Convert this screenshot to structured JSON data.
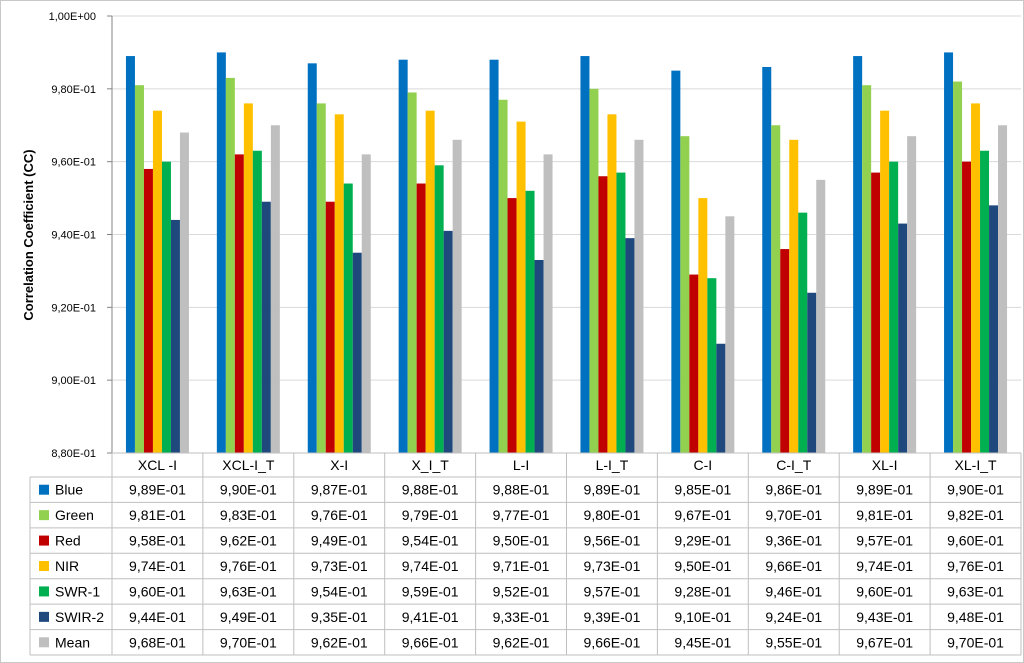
{
  "chart_data": {
    "type": "bar",
    "ylabel": "Correlation Coefficient (CC)",
    "ylim": [
      0.88,
      1.0
    ],
    "ytick_values": [
      0.88,
      0.9,
      0.92,
      0.94,
      0.96,
      0.98,
      1.0
    ],
    "ytick_labels": [
      "8,80E-01",
      "9,00E-01",
      "9,20E-01",
      "9,40E-01",
      "9,60E-01",
      "9,80E-01",
      "1,00E+00"
    ],
    "grid": true,
    "legend": "data-table-left",
    "categories": [
      "XCL -I",
      "XCL-I_T",
      "X-I",
      "X_I_T",
      "L-I",
      "L-I_T",
      "C-I",
      "C-I_T",
      "XL-I",
      "XL-I_T"
    ],
    "series": [
      {
        "name": "Blue",
        "color": "#0070c0",
        "values": [
          0.989,
          0.99,
          0.987,
          0.988,
          0.988,
          0.989,
          0.985,
          0.986,
          0.989,
          0.99
        ],
        "labels": [
          "9,89E-01",
          "9,90E-01",
          "9,87E-01",
          "9,88E-01",
          "9,88E-01",
          "9,89E-01",
          "9,85E-01",
          "9,86E-01",
          "9,89E-01",
          "9,90E-01"
        ]
      },
      {
        "name": "Green",
        "color": "#92d050",
        "values": [
          0.981,
          0.983,
          0.976,
          0.979,
          0.977,
          0.98,
          0.967,
          0.97,
          0.981,
          0.982
        ],
        "labels": [
          "9,81E-01",
          "9,83E-01",
          "9,76E-01",
          "9,79E-01",
          "9,77E-01",
          "9,80E-01",
          "9,67E-01",
          "9,70E-01",
          "9,81E-01",
          "9,82E-01"
        ]
      },
      {
        "name": "Red",
        "color": "#c00000",
        "values": [
          0.958,
          0.962,
          0.949,
          0.954,
          0.95,
          0.956,
          0.929,
          0.936,
          0.957,
          0.96
        ],
        "labels": [
          "9,58E-01",
          "9,62E-01",
          "9,49E-01",
          "9,54E-01",
          "9,50E-01",
          "9,56E-01",
          "9,29E-01",
          "9,36E-01",
          "9,57E-01",
          "9,60E-01"
        ]
      },
      {
        "name": "NIR",
        "color": "#ffc000",
        "values": [
          0.974,
          0.976,
          0.973,
          0.974,
          0.971,
          0.973,
          0.95,
          0.966,
          0.974,
          0.976
        ],
        "labels": [
          "9,74E-01",
          "9,76E-01",
          "9,73E-01",
          "9,74E-01",
          "9,71E-01",
          "9,73E-01",
          "9,50E-01",
          "9,66E-01",
          "9,74E-01",
          "9,76E-01"
        ]
      },
      {
        "name": "SWR-1",
        "color": "#00b050",
        "values": [
          0.96,
          0.963,
          0.954,
          0.959,
          0.952,
          0.957,
          0.928,
          0.946,
          0.96,
          0.963
        ],
        "labels": [
          "9,60E-01",
          "9,63E-01",
          "9,54E-01",
          "9,59E-01",
          "9,52E-01",
          "9,57E-01",
          "9,28E-01",
          "9,46E-01",
          "9,60E-01",
          "9,63E-01"
        ]
      },
      {
        "name": "SWIR-2",
        "color": "#1f497d",
        "values": [
          0.944,
          0.949,
          0.935,
          0.941,
          0.933,
          0.939,
          0.91,
          0.924,
          0.943,
          0.948
        ],
        "labels": [
          "9,44E-01",
          "9,49E-01",
          "9,35E-01",
          "9,41E-01",
          "9,33E-01",
          "9,39E-01",
          "9,10E-01",
          "9,24E-01",
          "9,43E-01",
          "9,48E-01"
        ]
      },
      {
        "name": "Mean",
        "color": "#bfbfbf",
        "values": [
          0.968,
          0.97,
          0.962,
          0.966,
          0.962,
          0.966,
          0.945,
          0.955,
          0.967,
          0.97
        ],
        "labels": [
          "9,68E-01",
          "9,70E-01",
          "9,62E-01",
          "9,66E-01",
          "9,62E-01",
          "9,66E-01",
          "9,45E-01",
          "9,55E-01",
          "9,67E-01",
          "9,70E-01"
        ]
      }
    ]
  }
}
